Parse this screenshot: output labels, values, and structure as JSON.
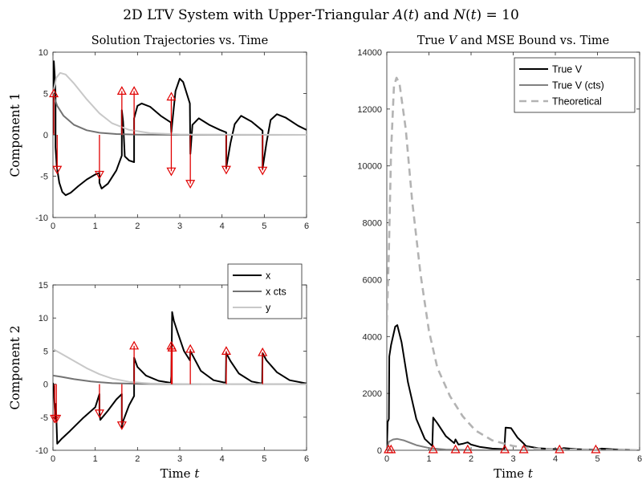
{
  "figure": {
    "title": "2D LTV System with Upper-Triangular A(t) and N(t) = 10",
    "title_parts": [
      "2D LTV System with Upper-Triangular ",
      "A",
      "(",
      "t",
      ") and ",
      "N",
      "(",
      "t",
      ") = 10"
    ]
  },
  "chart_data": [
    {
      "id": "c1",
      "type": "line",
      "title": "Solution Trajectories vs. Time",
      "ylabel": "Component 1",
      "xlabel": "",
      "xlim": [
        0,
        6
      ],
      "ylim": [
        -10,
        10
      ],
      "xticks": [
        0,
        1,
        2,
        3,
        4,
        5,
        6
      ],
      "yticks": [
        -10,
        -5,
        0,
        5,
        10
      ],
      "ytick_labels": [
        "-10",
        "-5",
        "0",
        "5",
        "10"
      ],
      "series": [
        {
          "name": "x",
          "color": "#000000",
          "points": [
            [
              0,
              0.2
            ],
            [
              0.02,
              8.9
            ],
            [
              0.04,
              7.3
            ],
            [
              0.06,
              4.9
            ],
            [
              0.06,
              -1.5
            ],
            [
              0.09,
              -3.8
            ],
            [
              0.15,
              -5.8
            ],
            [
              0.22,
              -6.9
            ],
            [
              0.3,
              -7.3
            ],
            [
              0.42,
              -7.0
            ],
            [
              0.6,
              -6.2
            ],
            [
              0.8,
              -5.4
            ],
            [
              1.0,
              -4.8
            ],
            [
              1.1,
              -4.6
            ],
            [
              1.1,
              -5.8
            ],
            [
              1.15,
              -6.5
            ],
            [
              1.3,
              -5.9
            ],
            [
              1.5,
              -4.3
            ],
            [
              1.63,
              -2.5
            ],
            [
              1.63,
              3.0
            ],
            [
              1.66,
              1.6
            ],
            [
              1.7,
              -2.6
            ],
            [
              1.8,
              -3.1
            ],
            [
              1.92,
              -3.3
            ],
            [
              1.92,
              2.0
            ],
            [
              2.0,
              3.5
            ],
            [
              2.1,
              3.8
            ],
            [
              2.3,
              3.4
            ],
            [
              2.55,
              2.3
            ],
            [
              2.79,
              1.5
            ],
            [
              2.8,
              0.3
            ],
            [
              2.82,
              1.3
            ],
            [
              2.9,
              5.3
            ],
            [
              3.0,
              6.8
            ],
            [
              3.08,
              6.4
            ],
            [
              3.24,
              3.8
            ],
            [
              3.25,
              -2.3
            ],
            [
              3.3,
              1.2
            ],
            [
              3.45,
              2.0
            ],
            [
              3.7,
              1.2
            ],
            [
              3.95,
              0.6
            ],
            [
              4.1,
              0.3
            ],
            [
              4.1,
              -4.0
            ],
            [
              4.2,
              -1.0
            ],
            [
              4.3,
              1.3
            ],
            [
              4.45,
              2.3
            ],
            [
              4.7,
              1.6
            ],
            [
              4.96,
              0.5
            ],
            [
              4.96,
              -4.1
            ],
            [
              5.05,
              -1.0
            ],
            [
              5.15,
              1.8
            ],
            [
              5.3,
              2.5
            ],
            [
              5.5,
              2.1
            ],
            [
              5.8,
              1.1
            ],
            [
              6.0,
              0.6
            ]
          ]
        },
        {
          "name": "x cts",
          "color": "#737373",
          "points": [
            [
              0,
              5.0
            ],
            [
              0.1,
              3.5
            ],
            [
              0.25,
              2.3
            ],
            [
              0.5,
              1.2
            ],
            [
              0.8,
              0.55
            ],
            [
              1.1,
              0.25
            ],
            [
              1.5,
              0.1
            ],
            [
              2.0,
              0.03
            ],
            [
              3.0,
              0.0
            ],
            [
              6.0,
              0.0
            ]
          ]
        },
        {
          "name": "y",
          "color": "#c8c8c8",
          "points": [
            [
              0,
              5.0
            ],
            [
              0.08,
              6.9
            ],
            [
              0.17,
              7.5
            ],
            [
              0.3,
              7.3
            ],
            [
              0.5,
              6.2
            ],
            [
              0.8,
              4.3
            ],
            [
              1.1,
              2.6
            ],
            [
              1.4,
              1.4
            ],
            [
              1.8,
              0.6
            ],
            [
              2.3,
              0.2
            ],
            [
              3.0,
              0.05
            ],
            [
              6.0,
              0.0
            ]
          ]
        }
      ],
      "events": [
        {
          "t": 0.02,
          "dir": "up",
          "v": 5.0
        },
        {
          "t": 0.1,
          "dir": "down",
          "v": -4.2
        },
        {
          "t": 1.1,
          "dir": "down",
          "v": -4.8
        },
        {
          "t": 1.63,
          "dir": "up",
          "v": 5.3
        },
        {
          "t": 1.92,
          "dir": "up",
          "v": 5.3
        },
        {
          "t": 2.8,
          "dir": "up",
          "v": 4.6
        },
        {
          "t": 2.8,
          "dir": "down",
          "v": -4.4
        },
        {
          "t": 3.25,
          "dir": "down",
          "v": -5.9
        },
        {
          "t": 4.1,
          "dir": "down",
          "v": -4.2
        },
        {
          "t": 4.96,
          "dir": "down",
          "v": -4.3
        }
      ]
    },
    {
      "id": "c2",
      "type": "line",
      "title": "",
      "ylabel": "Component 2",
      "xlabel": "Time t",
      "xlim": [
        0,
        6
      ],
      "ylim": [
        -10,
        15
      ],
      "xticks": [
        0,
        1,
        2,
        3,
        4,
        5,
        6
      ],
      "yticks": [
        -10,
        -5,
        0,
        5,
        10,
        15
      ],
      "ytick_labels": [
        "-10",
        "-5",
        "0",
        "5",
        "10",
        "15"
      ],
      "legend": {
        "position": "top-right",
        "entries": [
          "x",
          "x cts",
          "y"
        ]
      },
      "series": [
        {
          "name": "x",
          "color": "#000000",
          "points": [
            [
              0,
              0.2
            ],
            [
              0.02,
              -1.0
            ],
            [
              0.04,
              -3.5
            ],
            [
              0.06,
              -5.2
            ],
            [
              0.06,
              -3.0
            ],
            [
              0.08,
              -5.0
            ],
            [
              0.1,
              -9.0
            ],
            [
              0.2,
              -8.3
            ],
            [
              0.4,
              -7.1
            ],
            [
              0.7,
              -5.2
            ],
            [
              1.0,
              -3.5
            ],
            [
              1.1,
              -1.5
            ],
            [
              1.1,
              -4.2
            ],
            [
              1.12,
              -5.4
            ],
            [
              1.3,
              -4.0
            ],
            [
              1.5,
              -2.3
            ],
            [
              1.63,
              -1.5
            ],
            [
              1.63,
              -6.5
            ],
            [
              1.66,
              -5.6
            ],
            [
              1.8,
              -3.2
            ],
            [
              1.92,
              -1.8
            ],
            [
              1.92,
              4.0
            ],
            [
              2.0,
              2.6
            ],
            [
              2.2,
              1.3
            ],
            [
              2.5,
              0.5
            ],
            [
              2.79,
              0.2
            ],
            [
              2.8,
              1.2
            ],
            [
              2.82,
              10.9
            ],
            [
              2.86,
              9.6
            ],
            [
              2.95,
              7.8
            ],
            [
              3.1,
              5.0
            ],
            [
              3.24,
              3.6
            ],
            [
              3.25,
              5.0
            ],
            [
              3.3,
              4.4
            ],
            [
              3.5,
              2.0
            ],
            [
              3.8,
              0.6
            ],
            [
              4.09,
              0.2
            ],
            [
              4.1,
              4.7
            ],
            [
              4.2,
              3.5
            ],
            [
              4.4,
              1.6
            ],
            [
              4.7,
              0.4
            ],
            [
              4.95,
              0.1
            ],
            [
              4.96,
              4.7
            ],
            [
              5.05,
              3.6
            ],
            [
              5.3,
              1.8
            ],
            [
              5.6,
              0.6
            ],
            [
              6.0,
              0.1
            ]
          ]
        },
        {
          "name": "x cts",
          "color": "#737373",
          "points": [
            [
              0,
              1.3
            ],
            [
              0.2,
              1.1
            ],
            [
              0.5,
              0.75
            ],
            [
              0.9,
              0.4
            ],
            [
              1.4,
              0.15
            ],
            [
              2.0,
              0.04
            ],
            [
              3.0,
              0.0
            ],
            [
              6.0,
              0.0
            ]
          ]
        },
        {
          "name": "y",
          "color": "#c8c8c8",
          "points": [
            [
              0,
              5.3
            ],
            [
              0.2,
              4.6
            ],
            [
              0.5,
              3.5
            ],
            [
              0.8,
              2.4
            ],
            [
              1.1,
              1.5
            ],
            [
              1.4,
              0.85
            ],
            [
              1.8,
              0.35
            ],
            [
              2.3,
              0.1
            ],
            [
              3.0,
              0.02
            ],
            [
              6.0,
              0.0
            ]
          ]
        }
      ],
      "events": [
        {
          "t": 0.04,
          "dir": "down",
          "v": -5.2
        },
        {
          "t": 0.08,
          "dir": "down",
          "v": -5.2
        },
        {
          "t": 1.1,
          "dir": "down",
          "v": -4.4
        },
        {
          "t": 1.63,
          "dir": "down",
          "v": -6.2
        },
        {
          "t": 1.92,
          "dir": "up",
          "v": 5.8
        },
        {
          "t": 2.8,
          "dir": "up",
          "v": 5.8
        },
        {
          "t": 2.82,
          "dir": "up",
          "v": 5.5
        },
        {
          "t": 3.25,
          "dir": "up",
          "v": 5.3
        },
        {
          "t": 4.1,
          "dir": "up",
          "v": 5.0
        },
        {
          "t": 4.96,
          "dir": "up",
          "v": 4.8
        }
      ]
    },
    {
      "id": "c3",
      "type": "line",
      "title": "True V and MSE Bound vs. Time",
      "ylabel": "",
      "xlabel": "Time t",
      "xlim": [
        0,
        6
      ],
      "ylim": [
        0,
        14000
      ],
      "xticks": [
        0,
        1,
        2,
        3,
        4,
        5,
        6
      ],
      "yticks": [
        0,
        2000,
        4000,
        6000,
        8000,
        10000,
        12000,
        14000
      ],
      "ytick_labels": [
        "0",
        "2000",
        "4000",
        "6000",
        "8000",
        "10000",
        "12000",
        "14000"
      ],
      "legend": {
        "position": "top-right",
        "entries": [
          "True V",
          "True V (cts)",
          "Theoretical"
        ]
      },
      "series": [
        {
          "name": "True V",
          "color": "#000000",
          "points": [
            [
              0,
              0
            ],
            [
              0.02,
              1000
            ],
            [
              0.05,
              1100
            ],
            [
              0.06,
              3300
            ],
            [
              0.1,
              3700
            ],
            [
              0.2,
              4350
            ],
            [
              0.25,
              4400
            ],
            [
              0.35,
              3800
            ],
            [
              0.5,
              2400
            ],
            [
              0.7,
              1100
            ],
            [
              0.9,
              400
            ],
            [
              1.08,
              150
            ],
            [
              1.1,
              1150
            ],
            [
              1.2,
              950
            ],
            [
              1.4,
              500
            ],
            [
              1.6,
              250
            ],
            [
              1.63,
              380
            ],
            [
              1.7,
              200
            ],
            [
              1.8,
              230
            ],
            [
              1.92,
              280
            ],
            [
              2.0,
              200
            ],
            [
              2.2,
              120
            ],
            [
              2.5,
              60
            ],
            [
              2.79,
              40
            ],
            [
              2.82,
              800
            ],
            [
              2.95,
              780
            ],
            [
              3.1,
              450
            ],
            [
              3.24,
              250
            ],
            [
              3.3,
              150
            ],
            [
              3.6,
              70
            ],
            [
              4.1,
              30
            ],
            [
              4.2,
              80
            ],
            [
              4.5,
              40
            ],
            [
              4.96,
              10
            ],
            [
              5.1,
              60
            ],
            [
              5.5,
              20
            ],
            [
              6.0,
              0
            ]
          ]
        },
        {
          "name": "True V (cts)",
          "color": "#808080",
          "points": [
            [
              0,
              0
            ],
            [
              0.05,
              300
            ],
            [
              0.15,
              380
            ],
            [
              0.25,
              400
            ],
            [
              0.4,
              350
            ],
            [
              0.7,
              180
            ],
            [
              1.0,
              80
            ],
            [
              1.4,
              25
            ],
            [
              2.0,
              5
            ],
            [
              3.0,
              0
            ],
            [
              6.0,
              0
            ]
          ]
        },
        {
          "name": "Theoretical",
          "color": "#b3b3b3",
          "dashed": true,
          "points": [
            [
              0,
              4500
            ],
            [
              0.05,
              7000
            ],
            [
              0.1,
              10500
            ],
            [
              0.17,
              12800
            ],
            [
              0.23,
              13100
            ],
            [
              0.3,
              12900
            ],
            [
              0.45,
              11300
            ],
            [
              0.6,
              8800
            ],
            [
              0.8,
              6200
            ],
            [
              1.0,
              4200
            ],
            [
              1.2,
              2900
            ],
            [
              1.5,
              1900
            ],
            [
              1.8,
              1200
            ],
            [
              2.1,
              700
            ],
            [
              2.5,
              350
            ],
            [
              3.0,
              150
            ],
            [
              3.5,
              60
            ],
            [
              4.0,
              30
            ],
            [
              5.0,
              5
            ],
            [
              6.0,
              0
            ]
          ]
        }
      ],
      "events": [
        {
          "t": 0.04,
          "dir": "up",
          "v": 0
        },
        {
          "t": 0.1,
          "dir": "up",
          "v": 0
        },
        {
          "t": 1.1,
          "dir": "up",
          "v": 0
        },
        {
          "t": 1.63,
          "dir": "up",
          "v": 0
        },
        {
          "t": 1.92,
          "dir": "up",
          "v": 0
        },
        {
          "t": 2.8,
          "dir": "up",
          "v": 0
        },
        {
          "t": 3.25,
          "dir": "up",
          "v": 0
        },
        {
          "t": 4.1,
          "dir": "up",
          "v": 0
        },
        {
          "t": 4.96,
          "dir": "up",
          "v": 0
        }
      ]
    }
  ],
  "colors": {
    "event_marker": "#e00000",
    "axis": "#262626"
  }
}
